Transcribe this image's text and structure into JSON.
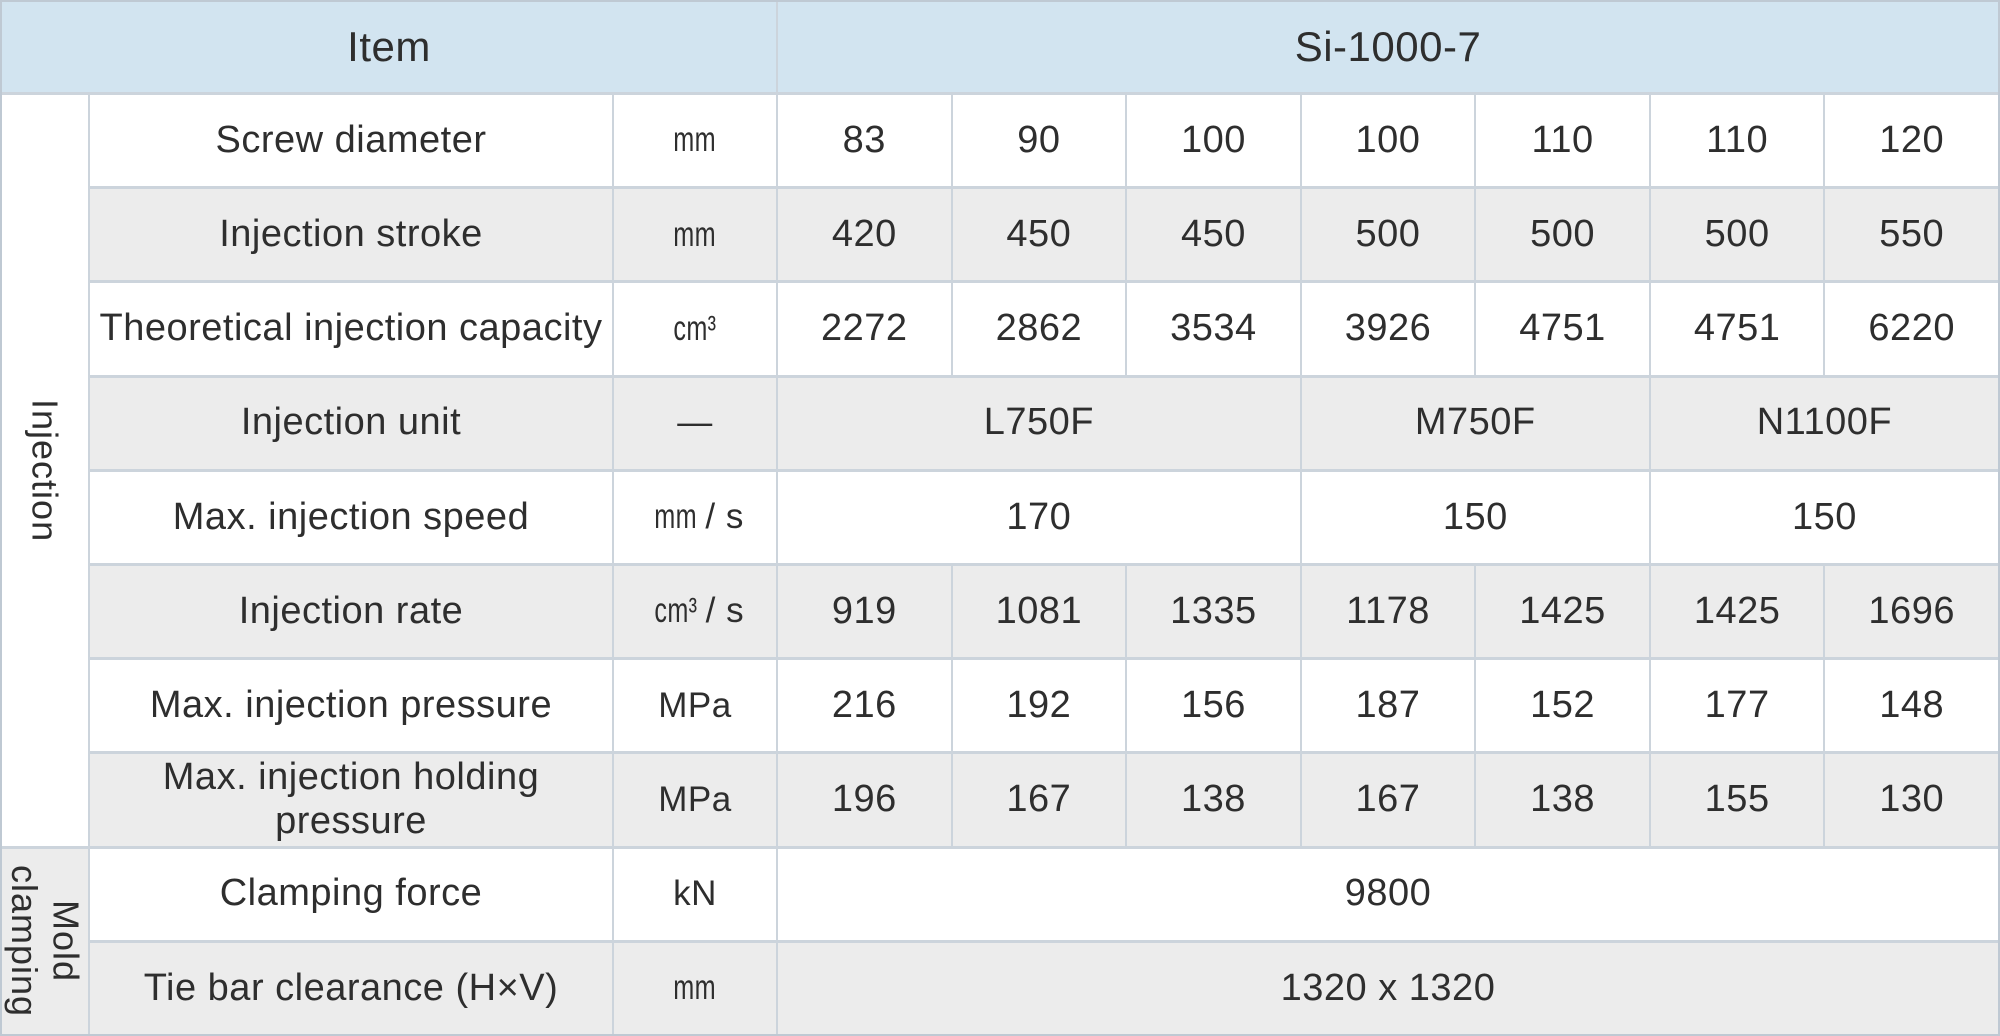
{
  "theme": {
    "header_background": "#d2e4f0",
    "row_alt_background": "#ececec",
    "row_background": "#ffffff",
    "grid_line_color": "#ccd4dc",
    "outer_border_color": "#bfc9d3",
    "text_color": "#2e2e2e"
  },
  "header": {
    "item_label": "Item",
    "model_label": "Si-1000-7"
  },
  "sections": [
    {
      "label": "Injection",
      "label_shade": "white",
      "rows": [
        {
          "name": "Screw diameter",
          "unit": "mm",
          "cells": [
            {
              "text": "83",
              "span": 1
            },
            {
              "text": "90",
              "span": 1
            },
            {
              "text": "100",
              "span": 1
            },
            {
              "text": "100",
              "span": 1
            },
            {
              "text": "110",
              "span": 1
            },
            {
              "text": "110",
              "span": 1
            },
            {
              "text": "120",
              "span": 1
            }
          ]
        },
        {
          "name": "Injection stroke",
          "unit": "mm",
          "cells": [
            {
              "text": "420",
              "span": 1
            },
            {
              "text": "450",
              "span": 1
            },
            {
              "text": "450",
              "span": 1
            },
            {
              "text": "500",
              "span": 1
            },
            {
              "text": "500",
              "span": 1
            },
            {
              "text": "500",
              "span": 1
            },
            {
              "text": "550",
              "span": 1
            }
          ]
        },
        {
          "name": "Theoretical injection capacity",
          "unit": "cm³",
          "cells": [
            {
              "text": "2272",
              "span": 1
            },
            {
              "text": "2862",
              "span": 1
            },
            {
              "text": "3534",
              "span": 1
            },
            {
              "text": "3926",
              "span": 1
            },
            {
              "text": "4751",
              "span": 1
            },
            {
              "text": "4751",
              "span": 1
            },
            {
              "text": "6220",
              "span": 1
            }
          ]
        },
        {
          "name": "Injection unit",
          "unit": "—",
          "cells": [
            {
              "text": "L750F",
              "span": 3
            },
            {
              "text": "M750F",
              "span": 2
            },
            {
              "text": "N1100F",
              "span": 2
            }
          ]
        },
        {
          "name": "Max. injection speed",
          "unit": "mm / s",
          "cells": [
            {
              "text": "170",
              "span": 3
            },
            {
              "text": "150",
              "span": 2
            },
            {
              "text": "150",
              "span": 2
            }
          ]
        },
        {
          "name": "Injection rate",
          "unit": "cm³ / s",
          "cells": [
            {
              "text": "919",
              "span": 1
            },
            {
              "text": "1081",
              "span": 1
            },
            {
              "text": "1335",
              "span": 1
            },
            {
              "text": "1178",
              "span": 1
            },
            {
              "text": "1425",
              "span": 1
            },
            {
              "text": "1425",
              "span": 1
            },
            {
              "text": "1696",
              "span": 1
            }
          ]
        },
        {
          "name": "Max. injection pressure",
          "unit": "MPa",
          "cells": [
            {
              "text": "216",
              "span": 1
            },
            {
              "text": "192",
              "span": 1
            },
            {
              "text": "156",
              "span": 1
            },
            {
              "text": "187",
              "span": 1
            },
            {
              "text": "152",
              "span": 1
            },
            {
              "text": "177",
              "span": 1
            },
            {
              "text": "148",
              "span": 1
            }
          ]
        },
        {
          "name": "Max. injection holding pressure",
          "unit": "MPa",
          "cells": [
            {
              "text": "196",
              "span": 1
            },
            {
              "text": "167",
              "span": 1
            },
            {
              "text": "138",
              "span": 1
            },
            {
              "text": "167",
              "span": 1
            },
            {
              "text": "138",
              "span": 1
            },
            {
              "text": "155",
              "span": 1
            },
            {
              "text": "130",
              "span": 1
            }
          ]
        }
      ]
    },
    {
      "label": "Mold clamping",
      "label_shade": "gray",
      "rows": [
        {
          "name": "Clamping force",
          "unit": "kN",
          "cells": [
            {
              "text": "9800",
              "span": 7
            }
          ]
        },
        {
          "name": "Tie bar clearance (H×V)",
          "unit": "mm",
          "cells": [
            {
              "text": "1320 x 1320",
              "span": 7
            }
          ]
        }
      ]
    }
  ]
}
